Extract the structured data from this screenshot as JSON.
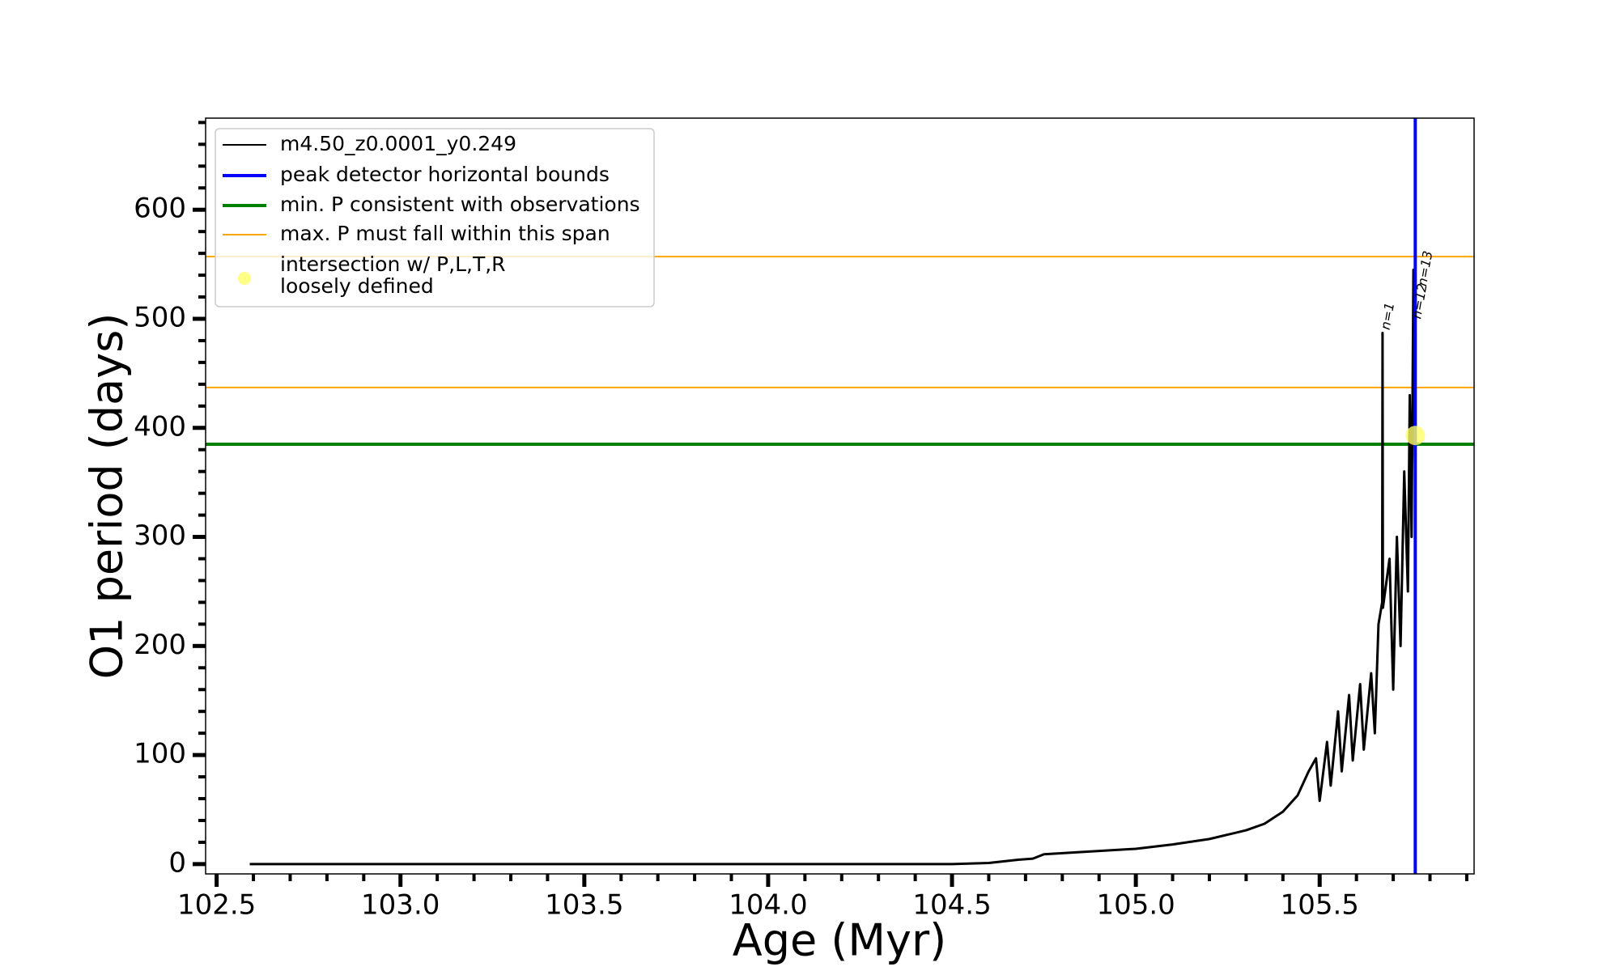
{
  "chart_data": {
    "type": "line",
    "xlabel": "Age (Myr)",
    "ylabel": "O1 period (days)",
    "xlim": [
      102.47,
      105.92
    ],
    "ylim": [
      -9,
      684
    ],
    "xticks": [
      102.5,
      {
        "value": 103,
        "label": "103.0"
      },
      103.5,
      {
        "value": 104,
        "label": "104.0"
      },
      104.5,
      {
        "value": 105,
        "label": "105.0"
      },
      105.5
    ],
    "yticks": [
      0,
      100,
      200,
      300,
      400,
      500,
      600
    ],
    "xminorticks": [
      102.6,
      102.7,
      102.8,
      102.9,
      103.1,
      103.2,
      103.3,
      103.4,
      103.6,
      103.7,
      103.8,
      103.9,
      104.1,
      104.2,
      104.3,
      104.4,
      104.6,
      104.7,
      104.8,
      104.9,
      105.1,
      105.2,
      105.3,
      105.4,
      105.6,
      105.7,
      105.8,
      105.9
    ],
    "yminorticks": [
      20,
      40,
      60,
      80,
      120,
      140,
      160,
      180,
      220,
      240,
      260,
      280,
      320,
      340,
      360,
      380,
      420,
      440,
      460,
      480,
      520,
      540,
      560,
      580,
      620,
      640,
      660,
      680
    ],
    "legend": "upper left",
    "series": [
      {
        "name": "m4.50_z0.0001_y0.249",
        "color": "#000000",
        "x": [
          102.59,
          102.8,
          103.0,
          103.5,
          104.0,
          104.5,
          104.6,
          104.68,
          104.72,
          104.75,
          104.85,
          105.0,
          105.1,
          105.2,
          105.3,
          105.35,
          105.4,
          105.44,
          105.47,
          105.49,
          105.5,
          105.52,
          105.53,
          105.55,
          105.56,
          105.58,
          105.59,
          105.61,
          105.62,
          105.64,
          105.65,
          105.66,
          105.67,
          105.671,
          105.672,
          105.69,
          105.7,
          105.71,
          105.72,
          105.73,
          105.74,
          105.745,
          105.75,
          105.755,
          105.76
        ],
        "values": [
          0,
          0,
          0,
          0,
          0,
          0,
          1,
          4,
          5,
          9,
          11,
          14,
          18,
          23,
          31,
          37,
          48,
          63,
          85,
          97,
          58,
          112,
          72,
          140,
          85,
          155,
          95,
          165,
          105,
          175,
          120,
          220,
          240,
          487,
          235,
          280,
          160,
          300,
          200,
          360,
          250,
          430,
          300,
          545,
          330
        ]
      }
    ],
    "vline": {
      "name": "peak detector horizontal bounds",
      "color": "#0000ff",
      "x": 105.76
    },
    "min_line": {
      "name": "min. P consistent with observations",
      "color": "#008000",
      "value": 385
    },
    "max_span": {
      "name": "max. P must fall within this span",
      "color": "#ffa500",
      "values": [
        437,
        557
      ]
    },
    "point": {
      "name": [
        "intersection w/ P,L,T,R",
        "loosely defined"
      ],
      "color": "#ffff66",
      "x": 105.76,
      "y": 393
    },
    "annotations": [
      {
        "text": "n=1",
        "x": 105.68,
        "y": 490
      },
      {
        "text": "n=12",
        "x": 105.765,
        "y": 500
      },
      {
        "text": "n=13",
        "x": 105.78,
        "y": 530
      }
    ]
  }
}
